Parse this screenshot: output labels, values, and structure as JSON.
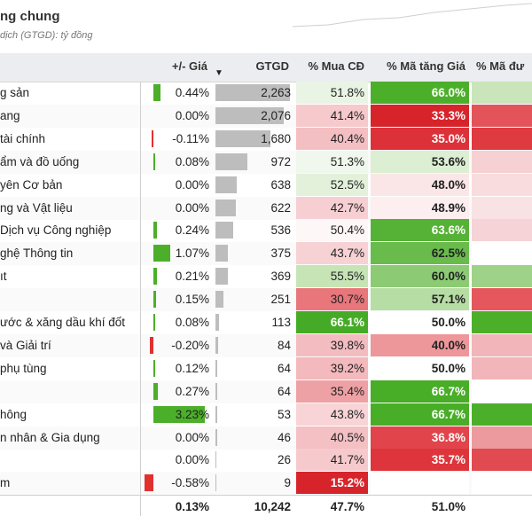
{
  "header": {
    "title": "ng chung",
    "subtitle": "dịch (GTGD): tỷ đồng"
  },
  "columns": {
    "price": "+/- Giá",
    "gtgd": "GTGD",
    "mua": "% Mua CĐ",
    "tang": "% Mã tăng Giá",
    "duoi": "% Mã đư"
  },
  "colors": {
    "bar_up": "#4caf2a",
    "bar_down": "#e0312f",
    "bar_gtgd": "#bdbdbd",
    "header_bg": "#ebedf0"
  },
  "max_gtgd": 2263,
  "rows": [
    {
      "name": "g sản",
      "price": "0.44%",
      "price_v": 0.44,
      "gtgd": "2,263",
      "gtgd_v": 2263,
      "mua": "51.8%",
      "mua_bg": "#eaf4e4",
      "tang": "66.0%",
      "tang_bg": "#4caf2a",
      "tang_fg": "#ffffff",
      "duoi_bg": "#c9e5b9"
    },
    {
      "name": "ang",
      "price": "0.00%",
      "price_v": 0,
      "gtgd": "2,076",
      "gtgd_v": 2076,
      "mua": "41.4%",
      "mua_bg": "#f6c9cc",
      "tang": "33.3%",
      "tang_bg": "#d7242b",
      "tang_fg": "#ffffff",
      "duoi_bg": "#e3545a"
    },
    {
      "name": "tài chính",
      "price": "-0.11%",
      "price_v": -0.11,
      "gtgd": "1,680",
      "gtgd_v": 1680,
      "mua": "40.4%",
      "mua_bg": "#f4bfc3",
      "tang": "35.0%",
      "tang_bg": "#dc3138",
      "tang_fg": "#ffffff",
      "duoi_bg": "#de3a40"
    },
    {
      "name": "ẩm và đồ uống",
      "price": "0.08%",
      "price_v": 0.08,
      "gtgd": "972",
      "gtgd_v": 972,
      "mua": "51.3%",
      "mua_bg": "#f0f7ec",
      "tang": "53.6%",
      "tang_bg": "#dcefd2",
      "tang_fg": "#222222",
      "duoi_bg": "#f6d0d3"
    },
    {
      "name": "yên Cơ bản",
      "price": "0.00%",
      "price_v": 0,
      "gtgd": "638",
      "gtgd_v": 638,
      "mua": "52.5%",
      "mua_bg": "#e3f1db",
      "tang": "48.0%",
      "tang_bg": "#fbe6e7",
      "tang_fg": "#222222",
      "duoi_bg": "#f8dcde"
    },
    {
      "name": "ng và Vật liệu",
      "price": "0.00%",
      "price_v": 0,
      "gtgd": "622",
      "gtgd_v": 622,
      "mua": "42.7%",
      "mua_bg": "#f7cfd2",
      "tang": "48.9%",
      "tang_bg": "#fdeeef",
      "tang_fg": "#222222",
      "duoi_bg": "#f9e2e4"
    },
    {
      "name": "Dịch vụ Công nghiệp",
      "price": "0.24%",
      "price_v": 0.24,
      "gtgd": "536",
      "gtgd_v": 536,
      "mua": "50.4%",
      "mua_bg": "#fdf7f7",
      "tang": "63.6%",
      "tang_bg": "#56b236",
      "tang_fg": "#ffffff",
      "duoi_bg": "#f6d3d6"
    },
    {
      "name": "ghệ Thông tin",
      "price": "1.07%",
      "price_v": 1.07,
      "gtgd": "375",
      "gtgd_v": 375,
      "mua": "43.7%",
      "mua_bg": "#f7d2d5",
      "tang": "62.5%",
      "tang_bg": "#69bb4c",
      "tang_fg": "#222222",
      "duoi_bg": "#ffffff"
    },
    {
      "name": "ıt",
      "price": "0.21%",
      "price_v": 0.21,
      "gtgd": "369",
      "gtgd_v": 369,
      "mua": "55.5%",
      "mua_bg": "#c6e4b6",
      "tang": "60.0%",
      "tang_bg": "#8ccb74",
      "tang_fg": "#222222",
      "duoi_bg": "#9ed288"
    },
    {
      "name": "",
      "price": "0.15%",
      "price_v": 0.15,
      "gtgd": "251",
      "gtgd_v": 251,
      "mua": "30.7%",
      "mua_bg": "#e8767b",
      "tang": "57.1%",
      "tang_bg": "#b6dda3",
      "tang_fg": "#222222",
      "duoi_bg": "#e5575d"
    },
    {
      "name": "ước & xăng dầu khí đốt",
      "price": "0.08%",
      "price_v": 0.08,
      "gtgd": "113",
      "gtgd_v": 113,
      "mua": "66.1%",
      "mua_bg": "#45ab26",
      "mua_fg": "#ffffff",
      "tang": "50.0%",
      "tang_bg": "#ffffff",
      "tang_fg": "#222222",
      "duoi_bg": "#4caf2a"
    },
    {
      "name": "và Giải trí",
      "price": "-0.20%",
      "price_v": -0.2,
      "gtgd": "84",
      "gtgd_v": 84,
      "mua": "39.8%",
      "mua_bg": "#f3bcc0",
      "tang": "40.0%",
      "tang_bg": "#ed979b",
      "tang_fg": "#222222",
      "duoi_bg": "#f2b5b9"
    },
    {
      "name": "phụ tùng",
      "price": "0.12%",
      "price_v": 0.12,
      "gtgd": "64",
      "gtgd_v": 64,
      "mua": "39.2%",
      "mua_bg": "#f3b9bd",
      "tang": "50.0%",
      "tang_bg": "#ffffff",
      "tang_fg": "#222222",
      "duoi_bg": "#f2b5b9"
    },
    {
      "name": "",
      "price": "0.27%",
      "price_v": 0.27,
      "gtgd": "64",
      "gtgd_v": 64,
      "mua": "35.4%",
      "mua_bg": "#eea1a5",
      "tang": "66.7%",
      "tang_bg": "#48ad27",
      "tang_fg": "#ffffff",
      "duoi_bg": "#ffffff"
    },
    {
      "name": "hông",
      "price": "3.23%",
      "price_v": 3.23,
      "gtgd": "53",
      "gtgd_v": 53,
      "mua": "43.8%",
      "mua_bg": "#f8d4d7",
      "tang": "66.7%",
      "tang_bg": "#48ad27",
      "tang_fg": "#ffffff",
      "duoi_bg": "#4caf2a"
    },
    {
      "name": "n nhân & Gia dụng",
      "price": "0.00%",
      "price_v": 0,
      "gtgd": "46",
      "gtgd_v": 46,
      "mua": "40.5%",
      "mua_bg": "#f4c0c4",
      "tang": "36.8%",
      "tang_bg": "#e1454b",
      "tang_fg": "#ffffff",
      "duoi_bg": "#ed9a9e"
    },
    {
      "name": "",
      "price": "0.00%",
      "price_v": 0,
      "gtgd": "26",
      "gtgd_v": 26,
      "mua": "41.7%",
      "mua_bg": "#f6cacd",
      "tang": "35.7%",
      "tang_bg": "#dd353b",
      "tang_fg": "#ffffff",
      "duoi_bg": "#e04a50"
    },
    {
      "name": "m",
      "price": "-0.58%",
      "price_v": -0.58,
      "gtgd": "9",
      "gtgd_v": 9,
      "mua": "15.2%",
      "mua_bg": "#d7242b",
      "mua_fg": "#ffffff",
      "tang": "",
      "tang_bg": "#ffffff",
      "tang_fg": "#222222",
      "duoi_bg": "#ffffff"
    }
  ],
  "footer": {
    "price": "0.13%",
    "gtgd": "10,242",
    "mua": "47.7%",
    "tang": "51.0%"
  }
}
